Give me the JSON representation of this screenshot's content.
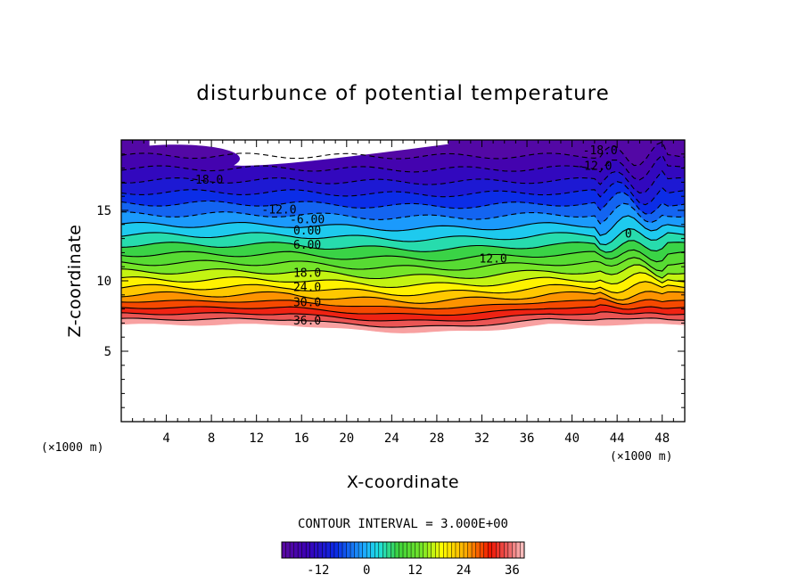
{
  "chart_data": {
    "type": "contour",
    "title": "disturbunce of potential temperature",
    "xlabel": "X-coordinate",
    "ylabel": "Z-coordinate",
    "x_unit": "(×1000 m)",
    "y_unit": "(×1000 m)",
    "xlim": [
      0,
      50
    ],
    "ylim": [
      0,
      20
    ],
    "x_ticks": [
      "4",
      "8",
      "12",
      "16",
      "20",
      "24",
      "28",
      "32",
      "36",
      "40",
      "44",
      "48"
    ],
    "y_ticks": [
      "5",
      "10",
      "15"
    ],
    "contour_interval_text": "CONTOUR INTERVAL = 3.000E+00",
    "contour_interval": 3.0,
    "level_range": [
      -21,
      39
    ],
    "colorbar_ticks": [
      "-12",
      "0",
      "12",
      "24",
      "36"
    ],
    "contour_labels": [
      {
        "text": "-18.0",
        "x": 42.5,
        "z": 19.3
      },
      {
        "text": "-12.0",
        "x": 42.0,
        "z": 18.2
      },
      {
        "text": "-18.0",
        "x": 7.5,
        "z": 17.2
      },
      {
        "text": "-12.0",
        "x": 14.0,
        "z": 15.1
      },
      {
        "text": "-6.00",
        "x": 16.5,
        "z": 14.4
      },
      {
        "text": "0.00",
        "x": 16.5,
        "z": 13.6
      },
      {
        "text": "6.00",
        "x": 16.5,
        "z": 12.6
      },
      {
        "text": "12.0",
        "x": 33.0,
        "z": 11.6
      },
      {
        "text": "18.0",
        "x": 16.5,
        "z": 10.6
      },
      {
        "text": "24.0",
        "x": 16.5,
        "z": 9.6
      },
      {
        "text": "30.0",
        "x": 16.5,
        "z": 8.5
      },
      {
        "text": "36.0",
        "x": 16.5,
        "z": 7.2
      },
      {
        "text": "0",
        "x": 45.0,
        "z": 13.4
      }
    ],
    "colors": {
      "min": "#5a0aa0",
      "low": "#0a28e6",
      "cyan": "#1ee1e1",
      "green": "#3cd23c",
      "yellow": "#ffff00",
      "orange": "#ff8c00",
      "red": "#e60000",
      "max": "#ffbebe"
    }
  }
}
